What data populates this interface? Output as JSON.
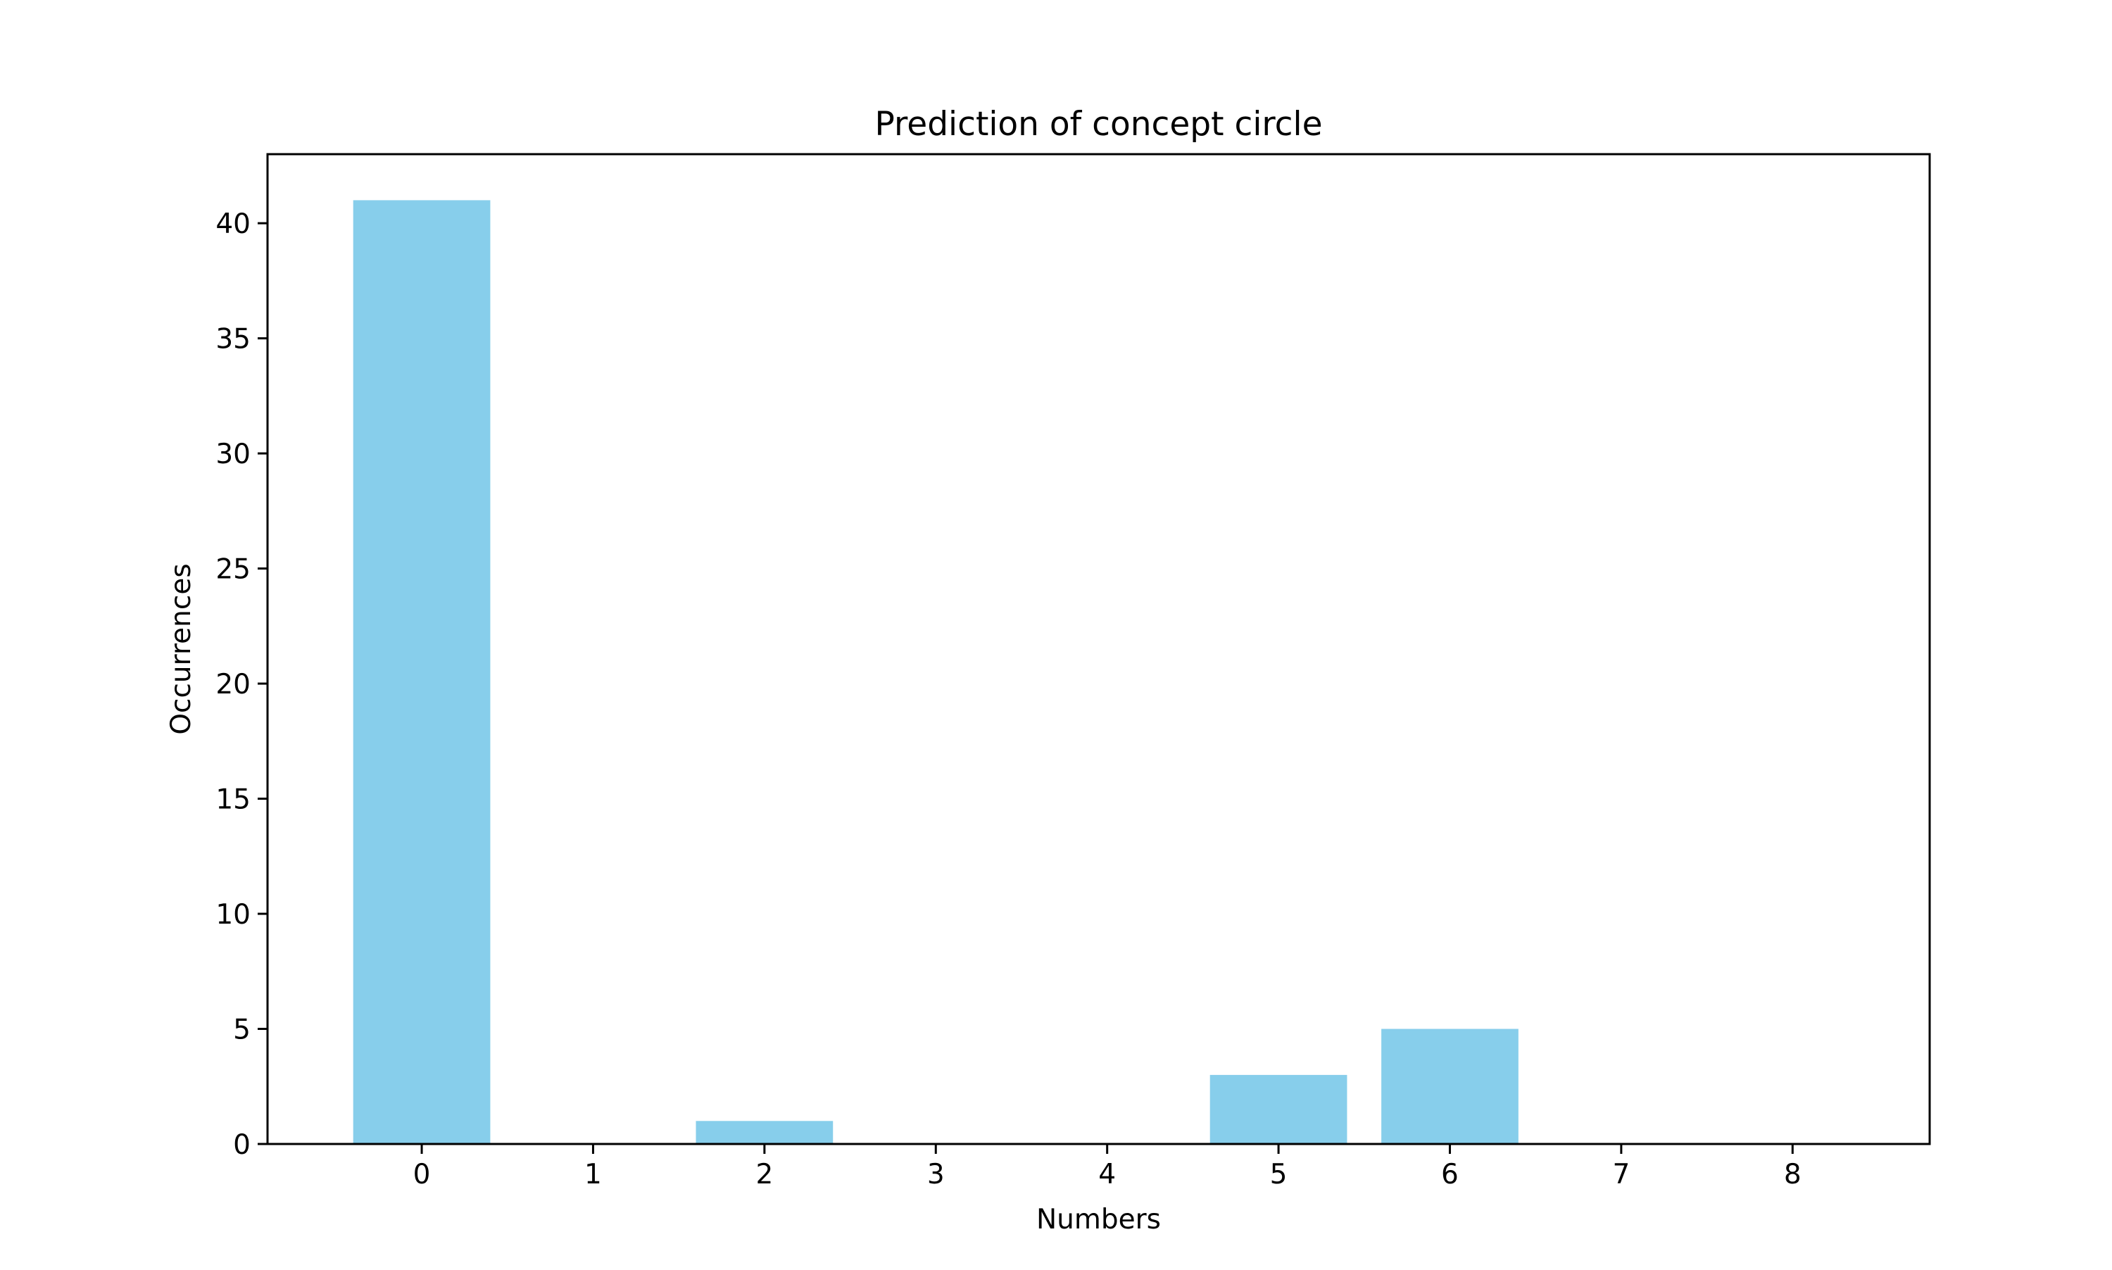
{
  "chart_data": {
    "type": "bar",
    "title": "Prediction of concept circle",
    "xlabel": "Numbers",
    "ylabel": "Occurrences",
    "categories": [
      "0",
      "1",
      "2",
      "3",
      "4",
      "5",
      "6",
      "7",
      "8"
    ],
    "values": [
      41,
      0,
      1,
      0,
      0,
      3,
      5,
      0,
      0
    ],
    "xlim": [
      -0.9,
      8.8
    ],
    "ylim": [
      0,
      43
    ],
    "yticks": [
      0,
      5,
      10,
      15,
      20,
      25,
      30,
      35,
      40
    ],
    "bar_width": 0.8,
    "bar_color": "#87CEEB",
    "grid": false,
    "legend": "none"
  }
}
